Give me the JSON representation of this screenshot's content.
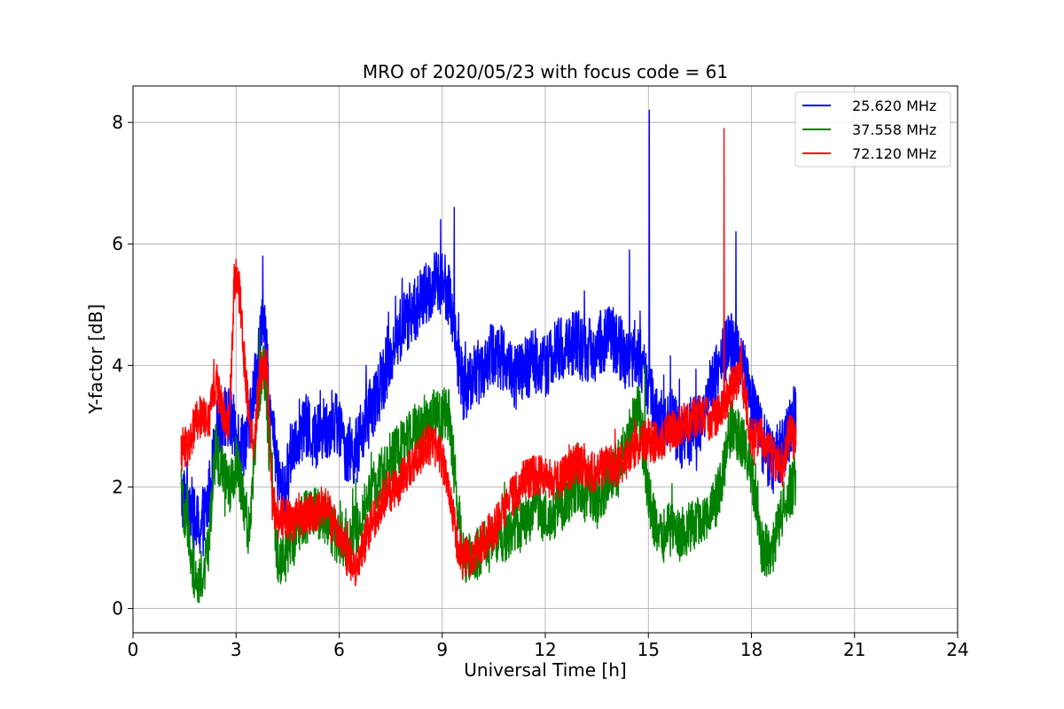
{
  "chart_data": {
    "type": "line",
    "title": "MRO of 2020/05/23 with focus code = 61",
    "xlabel": "Universal Time [h]",
    "ylabel": "Y-factor [dB]",
    "xlim": [
      0,
      24
    ],
    "ylim": [
      -0.4,
      8.6
    ],
    "xticks": [
      0,
      3,
      6,
      9,
      12,
      15,
      18,
      21,
      24
    ],
    "yticks": [
      0,
      2,
      4,
      6,
      8
    ],
    "grid": true,
    "legend_position": "top-right",
    "series": [
      {
        "name": "25.620 MHz",
        "color": "#0000ff",
        "noise": 0.55,
        "x": [
          1.4,
          1.6,
          1.8,
          2.0,
          2.2,
          2.4,
          2.6,
          2.8,
          3.0,
          3.2,
          3.4,
          3.6,
          3.8,
          4.0,
          4.2,
          4.4,
          4.6,
          4.8,
          5.0,
          5.3,
          5.6,
          5.9,
          6.2,
          6.5,
          6.8,
          7.1,
          7.4,
          7.7,
          8.0,
          8.3,
          8.6,
          8.9,
          9.2,
          9.4,
          9.6,
          9.9,
          10.2,
          10.5,
          10.8,
          11.1,
          11.4,
          11.7,
          12.0,
          12.3,
          12.6,
          12.9,
          13.2,
          13.5,
          13.8,
          14.1,
          14.4,
          14.7,
          15.0,
          15.3,
          15.6,
          15.9,
          16.2,
          16.5,
          16.8,
          17.1,
          17.4,
          17.7,
          18.0,
          18.3,
          18.6,
          18.9,
          19.1,
          19.3
        ],
        "y": [
          1.8,
          1.9,
          1.4,
          1.3,
          1.8,
          2.8,
          3.2,
          3.1,
          2.9,
          2.7,
          3.0,
          4.0,
          4.8,
          3.2,
          2.2,
          1.8,
          2.6,
          2.9,
          3.0,
          2.8,
          3.0,
          3.1,
          2.6,
          2.6,
          3.1,
          3.5,
          4.0,
          4.5,
          4.8,
          5.0,
          5.2,
          5.4,
          5.2,
          4.4,
          3.6,
          3.8,
          4.0,
          4.2,
          4.1,
          3.8,
          3.9,
          4.1,
          4.0,
          4.2,
          4.3,
          4.4,
          4.2,
          4.3,
          4.5,
          4.4,
          4.0,
          4.2,
          3.6,
          3.0,
          3.2,
          2.8,
          2.9,
          3.1,
          3.6,
          4.0,
          4.4,
          4.1,
          3.4,
          2.8,
          2.4,
          2.6,
          2.9,
          3.4
        ],
        "spikes": [
          [
            15.03,
            8.2
          ],
          [
            9.35,
            6.6
          ],
          [
            8.95,
            6.4
          ],
          [
            17.55,
            6.2
          ],
          [
            3.78,
            5.8
          ],
          [
            14.45,
            5.9
          ]
        ]
      },
      {
        "name": "37.558 MHz",
        "color": "#008000",
        "noise": 0.45,
        "x": [
          1.4,
          1.6,
          1.8,
          2.0,
          2.2,
          2.4,
          2.6,
          2.8,
          3.0,
          3.2,
          3.4,
          3.6,
          3.8,
          4.0,
          4.2,
          4.4,
          4.6,
          4.8,
          5.0,
          5.3,
          5.6,
          5.9,
          6.2,
          6.5,
          6.8,
          7.1,
          7.4,
          7.7,
          8.0,
          8.3,
          8.6,
          8.9,
          9.2,
          9.4,
          9.6,
          9.9,
          10.2,
          10.5,
          10.8,
          11.1,
          11.4,
          11.7,
          12.0,
          12.3,
          12.6,
          12.9,
          13.2,
          13.5,
          13.8,
          14.1,
          14.4,
          14.7,
          15.0,
          15.3,
          15.6,
          15.9,
          16.2,
          16.5,
          16.8,
          17.1,
          17.4,
          17.7,
          18.0,
          18.3,
          18.6,
          18.9,
          19.1,
          19.3
        ],
        "y": [
          1.9,
          1.3,
          0.5,
          0.5,
          1.0,
          2.6,
          2.3,
          1.9,
          2.4,
          1.8,
          1.2,
          3.2,
          4.1,
          2.3,
          0.9,
          0.8,
          1.0,
          1.3,
          1.5,
          1.6,
          1.5,
          1.2,
          1.1,
          1.3,
          1.7,
          2.1,
          2.4,
          2.6,
          2.8,
          3.0,
          3.1,
          3.2,
          3.2,
          2.0,
          0.9,
          0.8,
          1.0,
          1.2,
          1.2,
          1.3,
          1.4,
          1.6,
          1.5,
          1.6,
          1.8,
          2.0,
          1.9,
          1.7,
          2.1,
          2.3,
          2.8,
          3.3,
          1.9,
          1.1,
          1.3,
          1.2,
          1.3,
          1.4,
          1.5,
          2.0,
          3.0,
          2.8,
          2.3,
          1.0,
          0.9,
          1.6,
          1.9,
          2.1
        ],
        "spikes": [
          [
            3.68,
            4.6
          ],
          [
            14.9,
            4.0
          ],
          [
            8.75,
            3.6
          ]
        ]
      },
      {
        "name": "72.120 MHz",
        "color": "#ff0000",
        "noise": 0.35,
        "x": [
          1.4,
          1.6,
          1.8,
          2.0,
          2.2,
          2.4,
          2.6,
          2.8,
          2.95,
          3.1,
          3.3,
          3.5,
          3.7,
          3.9,
          4.05,
          4.2,
          4.4,
          4.6,
          4.8,
          5.0,
          5.3,
          5.6,
          5.9,
          6.2,
          6.5,
          6.8,
          7.1,
          7.4,
          7.7,
          8.0,
          8.3,
          8.6,
          8.9,
          9.2,
          9.4,
          9.6,
          9.9,
          10.2,
          10.5,
          10.8,
          11.1,
          11.4,
          11.7,
          12.0,
          12.3,
          12.6,
          12.9,
          13.2,
          13.5,
          13.8,
          14.1,
          14.4,
          14.7,
          15.0,
          15.3,
          15.6,
          15.9,
          16.2,
          16.5,
          16.8,
          17.1,
          17.4,
          17.7,
          18.0,
          18.3,
          18.6,
          18.9,
          19.1,
          19.3
        ],
        "y": [
          2.6,
          2.7,
          3.0,
          3.2,
          3.0,
          3.7,
          3.3,
          3.0,
          5.4,
          5.2,
          3.6,
          2.6,
          3.9,
          4.0,
          1.8,
          1.5,
          1.5,
          1.4,
          1.5,
          1.5,
          1.6,
          1.7,
          1.3,
          0.9,
          0.7,
          1.2,
          1.6,
          1.9,
          2.0,
          2.3,
          2.5,
          2.7,
          2.6,
          2.0,
          1.2,
          0.8,
          0.9,
          1.1,
          1.3,
          1.6,
          1.9,
          2.1,
          2.2,
          2.2,
          2.1,
          2.2,
          2.4,
          2.3,
          2.2,
          2.4,
          2.3,
          2.5,
          2.7,
          2.8,
          2.7,
          2.9,
          3.0,
          3.1,
          3.2,
          3.1,
          3.2,
          3.6,
          3.9,
          2.8,
          2.8,
          2.5,
          2.3,
          2.9,
          2.7
        ],
        "spikes": [
          [
            17.2,
            7.9
          ],
          [
            3.0,
            5.75
          ],
          [
            2.35,
            4.1
          ]
        ]
      }
    ]
  }
}
